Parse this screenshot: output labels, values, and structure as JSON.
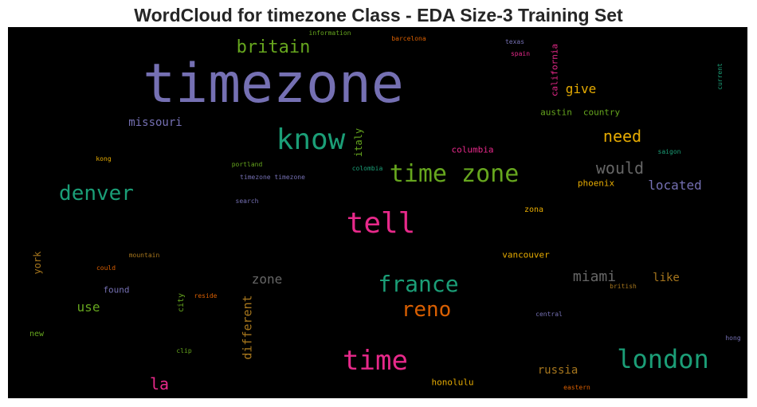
{
  "title": "WordCloud for timezone Class - EDA Size-3 Training Set",
  "chart_data": {
    "type": "wordcloud",
    "background": "#000000",
    "words": [
      {
        "text": "timezone",
        "color": "#7570b3"
      },
      {
        "text": "tell",
        "color": "#e7298a"
      },
      {
        "text": "time zone",
        "color": "#66a61e"
      },
      {
        "text": "know",
        "color": "#1b9e77"
      },
      {
        "text": "london",
        "color": "#1b9e77"
      },
      {
        "text": "time",
        "color": "#e7298a"
      },
      {
        "text": "france",
        "color": "#1b9e77"
      },
      {
        "text": "denver",
        "color": "#1b9e77"
      },
      {
        "text": "reno",
        "color": "#d95f02"
      },
      {
        "text": "britain",
        "color": "#66a61e"
      },
      {
        "text": "would",
        "color": "#666666"
      },
      {
        "text": "need",
        "color": "#e6ab02"
      },
      {
        "text": "miami",
        "color": "#666666"
      },
      {
        "text": "la",
        "color": "#e7298a"
      },
      {
        "text": "give",
        "color": "#e6ab02"
      },
      {
        "text": "located",
        "color": "#7570b3"
      },
      {
        "text": "missouri",
        "color": "#7570b3"
      },
      {
        "text": "zone",
        "color": "#666666"
      },
      {
        "text": "use",
        "color": "#66a61e"
      },
      {
        "text": "like",
        "color": "#a6761d"
      },
      {
        "text": "russia",
        "color": "#a6761d"
      },
      {
        "text": "different",
        "color": "#a6761d"
      },
      {
        "text": "york",
        "color": "#a6761d"
      },
      {
        "text": "italy",
        "color": "#66a61e"
      },
      {
        "text": "california",
        "color": "#e7298a"
      },
      {
        "text": "austin",
        "color": "#66a61e"
      },
      {
        "text": "country",
        "color": "#66a61e"
      },
      {
        "text": "phoenix",
        "color": "#e6ab02"
      },
      {
        "text": "columbia",
        "color": "#e7298a"
      },
      {
        "text": "honolulu",
        "color": "#e6ab02"
      },
      {
        "text": "vancouver",
        "color": "#e6ab02"
      },
      {
        "text": "zona",
        "color": "#e6ab02"
      },
      {
        "text": "found",
        "color": "#7570b3"
      },
      {
        "text": "city",
        "color": "#66a61e"
      },
      {
        "text": "new",
        "color": "#66a61e"
      },
      {
        "text": "information",
        "color": "#66a61e"
      },
      {
        "text": "barcelona",
        "color": "#d95f02"
      },
      {
        "text": "texas",
        "color": "#7570b3"
      },
      {
        "text": "spain",
        "color": "#e7298a"
      },
      {
        "text": "current",
        "color": "#1b9e77"
      },
      {
        "text": "saigon",
        "color": "#1b9e77"
      },
      {
        "text": "kong",
        "color": "#e6ab02"
      },
      {
        "text": "portland",
        "color": "#66a61e"
      },
      {
        "text": "timezone timezone",
        "color": "#7570b3"
      },
      {
        "text": "colombia",
        "color": "#1b9e77"
      },
      {
        "text": "search",
        "color": "#7570b3"
      },
      {
        "text": "mountain",
        "color": "#a6761d"
      },
      {
        "text": "could",
        "color": "#d95f02"
      },
      {
        "text": "reside",
        "color": "#d95f02"
      },
      {
        "text": "british",
        "color": "#a6761d"
      },
      {
        "text": "central",
        "color": "#7570b3"
      },
      {
        "text": "hong",
        "color": "#7570b3"
      },
      {
        "text": "clip",
        "color": "#66a61e"
      },
      {
        "text": "eastern",
        "color": "#d95f02"
      }
    ]
  }
}
